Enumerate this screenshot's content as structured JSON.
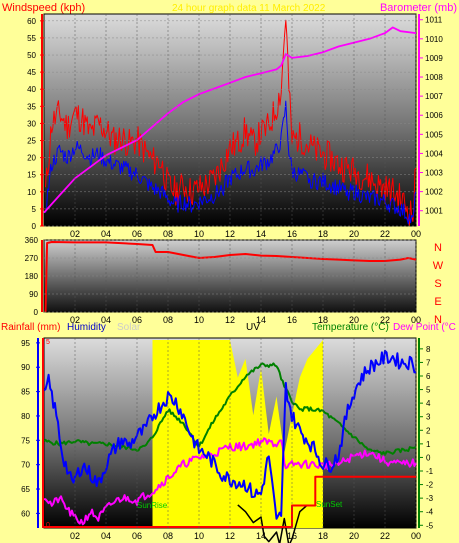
{
  "header": {
    "windspeed_label": "Windspeed (kph)",
    "subtitle": "24 hour graph data  11 March 2022",
    "barometer_label": "Barometer (mb)"
  },
  "colors": {
    "background": "#ffff99",
    "wind_gust": "#ff0000",
    "wind_avg": "#0000ff",
    "barometer": "#ff00ff",
    "direction": "#ff0000",
    "temperature": "#008000",
    "humidity": "#0000ff",
    "dewpoint": "#ff00ff",
    "solar": "#ffff00",
    "uv": "#000000",
    "rainfall": "#ff0000"
  },
  "panel3_labels": {
    "rainfall": "Rainfall (mm)",
    "humidity": "Humidity",
    "solar": "Solar",
    "uv": "UV",
    "temperature": "Temperature (°C)",
    "dewpoint": "Dew Point (°C",
    "sunrise": "SunRise",
    "sunset": "SunSet"
  },
  "compass": [
    "N",
    "W",
    "S",
    "E",
    "N"
  ],
  "chart_data": [
    {
      "type": "line",
      "title": "24 hour graph data  11 March 2022",
      "ylabel": "Windspeed (kph)",
      "y2label": "Barometer (mb)",
      "x_ticks": [
        "02",
        "04",
        "06",
        "08",
        "10",
        "12",
        "14",
        "16",
        "18",
        "20",
        "22",
        "00"
      ],
      "y_ticks": [
        0,
        5,
        10,
        15,
        20,
        25,
        30,
        35,
        40,
        45,
        50,
        55,
        60
      ],
      "y2_ticks": [
        1001,
        1002,
        1003,
        1004,
        1005,
        1006,
        1007,
        1008,
        1009,
        1010,
        1011
      ],
      "ylim": [
        0,
        62
      ],
      "y2lim": [
        1000.2,
        1011.3
      ],
      "series": [
        {
          "name": "Gust",
          "x": [
            0.1,
            0.5,
            1,
            1.5,
            2,
            2.5,
            3,
            3.5,
            4,
            4.5,
            5,
            5.5,
            6,
            6.5,
            7,
            7.5,
            8,
            8.5,
            9,
            9.5,
            10,
            10.5,
            11,
            11.5,
            12,
            12.5,
            13,
            13.5,
            14,
            14.5,
            15,
            15.3,
            15.6,
            15.8,
            16,
            16.5,
            17,
            17.5,
            18,
            18.5,
            19,
            19.5,
            20,
            20.5,
            21,
            21.5,
            22,
            22.5,
            23,
            23.5,
            23.8,
            24
          ],
          "values": [
            10,
            30,
            33,
            29,
            33,
            31,
            27,
            30,
            28,
            25,
            26,
            24,
            25,
            22,
            19,
            19,
            12,
            10,
            12,
            10,
            11,
            12,
            14,
            18,
            23,
            24,
            28,
            24,
            27,
            29,
            35,
            40,
            62,
            40,
            25,
            26,
            24,
            22,
            21,
            20,
            18,
            17,
            16,
            15,
            14,
            12,
            11,
            10,
            8,
            5,
            3,
            17
          ]
        },
        {
          "name": "Average",
          "x": [
            0.1,
            0.5,
            1,
            1.5,
            2,
            2.5,
            3,
            3.5,
            4,
            4.5,
            5,
            5.5,
            6,
            6.5,
            7,
            7.5,
            8,
            8.5,
            9,
            9.5,
            10,
            10.5,
            11,
            11.5,
            12,
            12.5,
            13,
            13.5,
            14,
            14.5,
            15,
            15.3,
            15.6,
            15.8,
            16,
            16.5,
            17,
            17.5,
            18,
            18.5,
            19,
            19.5,
            20,
            20.5,
            21,
            21.5,
            22,
            22.5,
            23,
            23.5,
            23.8,
            24
          ],
          "values": [
            5,
            18,
            22,
            20,
            23,
            22,
            20,
            21,
            19,
            18,
            17,
            16,
            15,
            13,
            11,
            10,
            8,
            6,
            7,
            6,
            7,
            8,
            9,
            11,
            14,
            15,
            17,
            16,
            18,
            19,
            22,
            25,
            35,
            22,
            16,
            15,
            14,
            13,
            13,
            12,
            11,
            10,
            10,
            9,
            8,
            8,
            7,
            6,
            5,
            3,
            1,
            10
          ]
        },
        {
          "name": "Barometer",
          "axis": "y2",
          "x": [
            0,
            1,
            2,
            3,
            4,
            5,
            6,
            7,
            8,
            9,
            10,
            11,
            12,
            13,
            14,
            15,
            15.3,
            15.6,
            16,
            17,
            18,
            19,
            20,
            21,
            22,
            22.5,
            23,
            24
          ],
          "values": [
            1000.9,
            1001.8,
            1002.7,
            1003.3,
            1003.9,
            1004.3,
            1004.7,
            1005.4,
            1006.1,
            1006.7,
            1007.1,
            1007.4,
            1007.7,
            1008.0,
            1008.2,
            1008.4,
            1008.6,
            1009.2,
            1009.0,
            1009.1,
            1009.3,
            1009.6,
            1009.8,
            1010.0,
            1010.3,
            1010.6,
            1010.4,
            1010.3
          ]
        }
      ]
    },
    {
      "type": "line",
      "x_ticks": [
        "02",
        "04",
        "06",
        "08",
        "10",
        "12",
        "14",
        "16",
        "18",
        "20",
        "22",
        "00"
      ],
      "y_ticks": [
        0,
        90,
        180,
        270,
        360
      ],
      "ylim": [
        0,
        360
      ],
      "series": [
        {
          "name": "Wind direction",
          "x": [
            0.1,
            0.2,
            0.5,
            2,
            4,
            6,
            7,
            7.2,
            8,
            9,
            10,
            11,
            12,
            13,
            14,
            15,
            16,
            17,
            18,
            19,
            20,
            21,
            22,
            23,
            23.5,
            24
          ],
          "values": [
            0,
            345,
            350,
            348,
            348,
            340,
            335,
            300,
            300,
            285,
            270,
            275,
            285,
            290,
            282,
            280,
            275,
            270,
            265,
            262,
            258,
            255,
            255,
            262,
            270,
            262
          ]
        }
      ]
    },
    {
      "type": "line",
      "ylabel": "Rainfall (mm)",
      "x_ticks": [
        "02",
        "04",
        "06",
        "08",
        "10",
        "12",
        "14",
        "16",
        "18",
        "20",
        "22",
        "00"
      ],
      "humidity_ticks": [
        60,
        65,
        70,
        75,
        80,
        85,
        90,
        95
      ],
      "temperature_ticks": [
        -5,
        -4,
        -3,
        -2,
        -1,
        0,
        1,
        2,
        3,
        4,
        5,
        6,
        7,
        8
      ],
      "rain_ticks": [
        0,
        5
      ],
      "humidity_lim": [
        57,
        96
      ],
      "temperature_lim": [
        -5.2,
        8.8
      ],
      "series": [
        {
          "name": "Humidity",
          "x": [
            0,
            0.3,
            0.8,
            1.2,
            1.8,
            2.5,
            3,
            3.5,
            4,
            4.5,
            5,
            5.5,
            6,
            6.5,
            7,
            7.5,
            8,
            8.5,
            9,
            9.5,
            10,
            10.5,
            11,
            11.5,
            12,
            13,
            13.5,
            14,
            14.5,
            15,
            15.3,
            15.6,
            16,
            16.5,
            17,
            17.5,
            18,
            18.5,
            19,
            19.5,
            20,
            20.5,
            21,
            21.5,
            22,
            22.5,
            23,
            23.5,
            23.8,
            24
          ],
          "values": [
            84,
            87,
            80,
            72,
            66,
            70,
            68,
            66,
            70,
            73,
            75,
            74,
            76,
            77,
            80,
            82,
            84,
            83,
            80,
            76,
            73,
            72,
            70,
            68,
            67,
            66,
            64,
            64,
            72,
            58,
            60,
            86,
            80,
            77,
            75,
            73,
            70,
            70,
            72,
            80,
            85,
            88,
            90,
            91,
            92,
            92,
            91,
            91,
            91,
            89
          ]
        },
        {
          "name": "Temperature",
          "axis": "temperature",
          "x": [
            0,
            1,
            2,
            3,
            4,
            5,
            6,
            6.5,
            7,
            8,
            9,
            10,
            11,
            12,
            13,
            14,
            15,
            15.5,
            16,
            16.5,
            17,
            18,
            19,
            20,
            21,
            22,
            23,
            23.5,
            24
          ],
          "values": [
            1.2,
            1.0,
            1.2,
            1.0,
            1.0,
            0.8,
            0.6,
            0.8,
            1.5,
            3.5,
            2.5,
            0.8,
            2.8,
            4.5,
            6.0,
            6.8,
            6.8,
            5.2,
            4.2,
            3.5,
            3.6,
            3.4,
            2.5,
            1.5,
            0.5,
            0.3,
            0.5,
            0.6,
            0.8
          ]
        },
        {
          "name": "Dew Point",
          "axis": "temperature",
          "x": [
            0,
            0.5,
            1,
            1.5,
            2,
            2.5,
            3,
            3.5,
            4,
            4.5,
            5,
            5.5,
            6,
            6.5,
            7,
            8,
            9,
            10,
            11,
            12,
            13,
            14,
            15,
            15.3,
            15.6,
            16,
            17,
            18,
            19,
            20,
            21,
            22,
            23,
            24
          ],
          "values": [
            -2.8,
            -3.5,
            -3.0,
            -3.8,
            -4.5,
            -4.8,
            -4.0,
            -4.5,
            -3.8,
            -3.3,
            -3.0,
            -3.0,
            -3.2,
            -2.8,
            -2.5,
            -1.5,
            -0.5,
            0.0,
            0.3,
            0.8,
            0.8,
            1.2,
            1.0,
            1.5,
            -1.0,
            -0.5,
            -0.5,
            -0.6,
            -0.5,
            0.1,
            0.4,
            -0.3,
            -0.5,
            -0.4
          ]
        },
        {
          "name": "Solar",
          "area": true,
          "x": [
            7,
            7.5,
            8,
            9,
            10,
            11,
            12,
            12.5,
            13,
            13.5,
            14,
            14.5,
            15,
            15.5,
            16,
            16.5,
            17,
            18
          ],
          "values": [
            1,
            1,
            1,
            1,
            1,
            1,
            1,
            0.8,
            0.9,
            0.6,
            0.85,
            0.5,
            0.7,
            0.4,
            0.6,
            0.8,
            0.9,
            1
          ]
        },
        {
          "name": "UV",
          "x": [
            12.5,
            13,
            13.5,
            14,
            14.2,
            14.5,
            15,
            15.2,
            15.5,
            15.8,
            16,
            16.5,
            17
          ],
          "values": [
            5.5,
            5.0,
            4.2,
            4.6,
            3.2,
            2.8,
            3.5,
            2.6,
            4.5,
            2.5,
            3.0,
            5.0,
            5.5
          ]
        },
        {
          "name": "Rainfall",
          "x": [
            0,
            15.6,
            16,
            16.2,
            17,
            17.5,
            18,
            24
          ],
          "values": [
            0,
            0,
            0.6,
            0.6,
            0.6,
            1.4,
            1.4,
            1.4
          ]
        }
      ]
    }
  ]
}
